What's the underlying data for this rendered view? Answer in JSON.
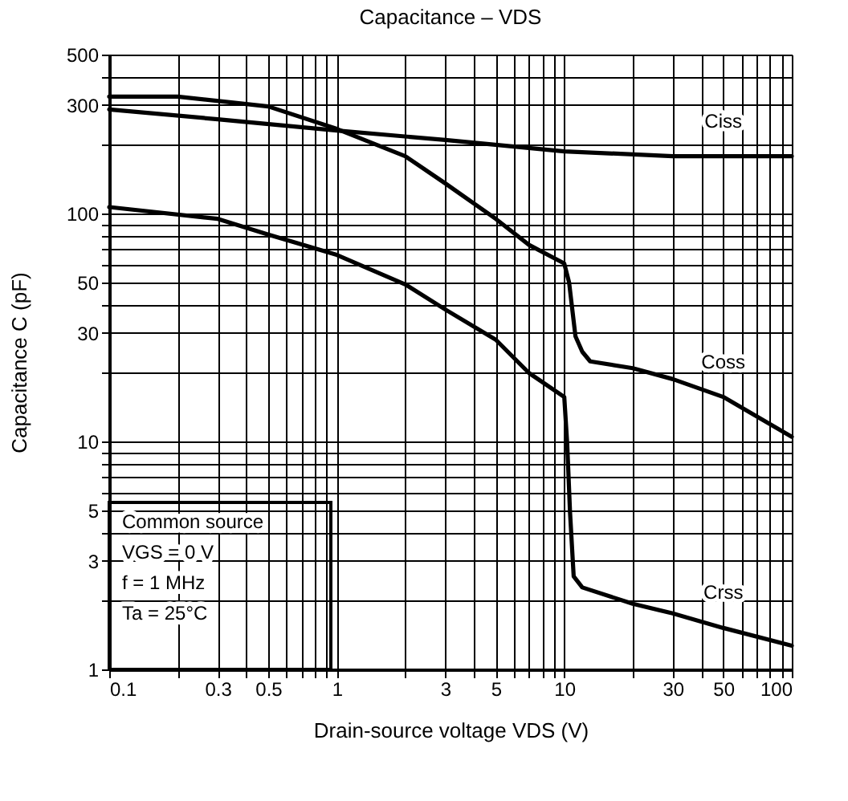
{
  "chart_data": {
    "type": "line",
    "title": "Capacitance – VDS",
    "xlabel": "Drain-source voltage   VDS   (V)",
    "ylabel": "Capacitance   C   (pF)",
    "log": "xy",
    "grid": true,
    "marker": "none",
    "line_style": "solid",
    "xlim": [
      0.1,
      100
    ],
    "ylim": [
      1,
      500
    ],
    "xticks": [
      0.1,
      {
        "value": 0.2,
        "label": null
      },
      0.3,
      {
        "value": 0.4,
        "label": null
      },
      0.5,
      {
        "value": 0.6,
        "label": null
      },
      {
        "value": 0.7,
        "label": null
      },
      {
        "value": 0.8,
        "label": null
      },
      {
        "value": 0.9,
        "label": null
      },
      1,
      {
        "value": 2,
        "label": null
      },
      3,
      {
        "value": 4,
        "label": null
      },
      5,
      {
        "value": 6,
        "label": null
      },
      {
        "value": 7,
        "label": null
      },
      {
        "value": 8,
        "label": null
      },
      {
        "value": 9,
        "label": null
      },
      10,
      {
        "value": 20,
        "label": null
      },
      30,
      {
        "value": 40,
        "label": null
      },
      50,
      {
        "value": 60,
        "label": null
      },
      {
        "value": 70,
        "label": null
      },
      {
        "value": 80,
        "label": null
      },
      {
        "value": 90,
        "label": null
      },
      100
    ],
    "yticks": [
      1,
      {
        "value": 2,
        "label": null
      },
      3,
      {
        "value": 4,
        "label": null
      },
      5,
      {
        "value": 6,
        "label": null
      },
      {
        "value": 7,
        "label": null
      },
      {
        "value": 8,
        "label": null
      },
      {
        "value": 9,
        "label": null
      },
      10,
      {
        "value": 20,
        "label": null
      },
      30,
      {
        "value": 40,
        "label": null
      },
      50,
      {
        "value": 60,
        "label": null
      },
      {
        "value": 70,
        "label": null
      },
      {
        "value": 80,
        "label": null
      },
      {
        "value": 90,
        "label": null
      },
      100,
      {
        "value": 200,
        "label": null
      },
      300,
      {
        "value": 400,
        "label": null
      },
      500
    ],
    "series": [
      {
        "name": "Ciss",
        "color": "#000000",
        "x": [
          0.1,
          0.3,
          1,
          3,
          10,
          30,
          50,
          100
        ],
        "values": [
          287,
          260,
          232,
          211,
          188,
          179,
          179,
          179
        ]
      },
      {
        "name": "Coss",
        "color": "#000000",
        "x": [
          0.1,
          0.2,
          0.5,
          1,
          2,
          3,
          5,
          7,
          10,
          10.5,
          11.2,
          12,
          13,
          20,
          30,
          50,
          100
        ],
        "values": [
          327,
          327,
          296,
          236,
          179,
          136,
          95,
          73,
          60.5,
          50,
          29,
          24.8,
          22.5,
          21,
          18.8,
          15.7,
          10.5
        ]
      },
      {
        "name": "Crss",
        "color": "#000000",
        "x": [
          0.1,
          0.3,
          0.5,
          1,
          2,
          3,
          5,
          7,
          10,
          10.3,
          10.6,
          11,
          12,
          20,
          30,
          50,
          100
        ],
        "values": [
          107,
          95,
          81,
          66,
          49,
          38,
          28,
          20,
          15.7,
          9.8,
          4.9,
          2.56,
          2.29,
          1.94,
          1.76,
          1.52,
          1.27
        ]
      }
    ],
    "annotations": [
      "Common source",
      "VGS = 0 V",
      "f = 1 MHz",
      "Ta = 25°C"
    ]
  }
}
